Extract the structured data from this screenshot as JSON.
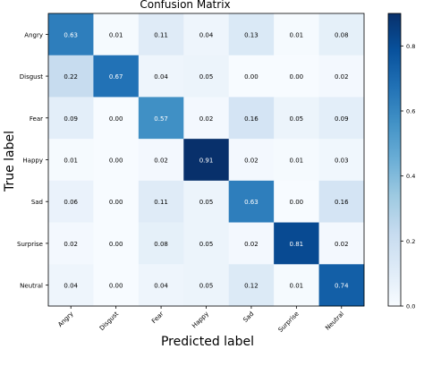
{
  "chart_data": {
    "type": "heatmap",
    "title": "Confusion Matrix",
    "xlabel": "Predicted label",
    "ylabel": "True label",
    "row_labels": [
      "Angry",
      "Disgust",
      "Fear",
      "Happy",
      "Sad",
      "Surprise",
      "Neutral"
    ],
    "col_labels": [
      "Angry",
      "Disgust",
      "Fear",
      "Happy",
      "Sad",
      "Surprise",
      "Neutral"
    ],
    "values": [
      [
        0.63,
        0.01,
        0.11,
        0.04,
        0.13,
        0.01,
        0.08
      ],
      [
        0.22,
        0.67,
        0.04,
        0.05,
        0.0,
        0.0,
        0.02
      ],
      [
        0.09,
        0.0,
        0.57,
        0.02,
        0.16,
        0.05,
        0.09
      ],
      [
        0.01,
        0.0,
        0.02,
        0.91,
        0.02,
        0.01,
        0.03
      ],
      [
        0.06,
        0.0,
        0.11,
        0.05,
        0.63,
        0.0,
        0.16
      ],
      [
        0.02,
        0.0,
        0.08,
        0.05,
        0.02,
        0.81,
        0.02
      ],
      [
        0.04,
        0.0,
        0.04,
        0.05,
        0.12,
        0.01,
        0.74
      ]
    ],
    "colorbar": {
      "colormap": "Blues",
      "range": [
        0,
        0.9
      ],
      "ticks": [
        0.0,
        0.2,
        0.4,
        0.6,
        0.8
      ],
      "tick_labels": [
        "0.0",
        "0.2",
        "0.4",
        "0.6",
        "0.8"
      ]
    },
    "grid": false
  }
}
